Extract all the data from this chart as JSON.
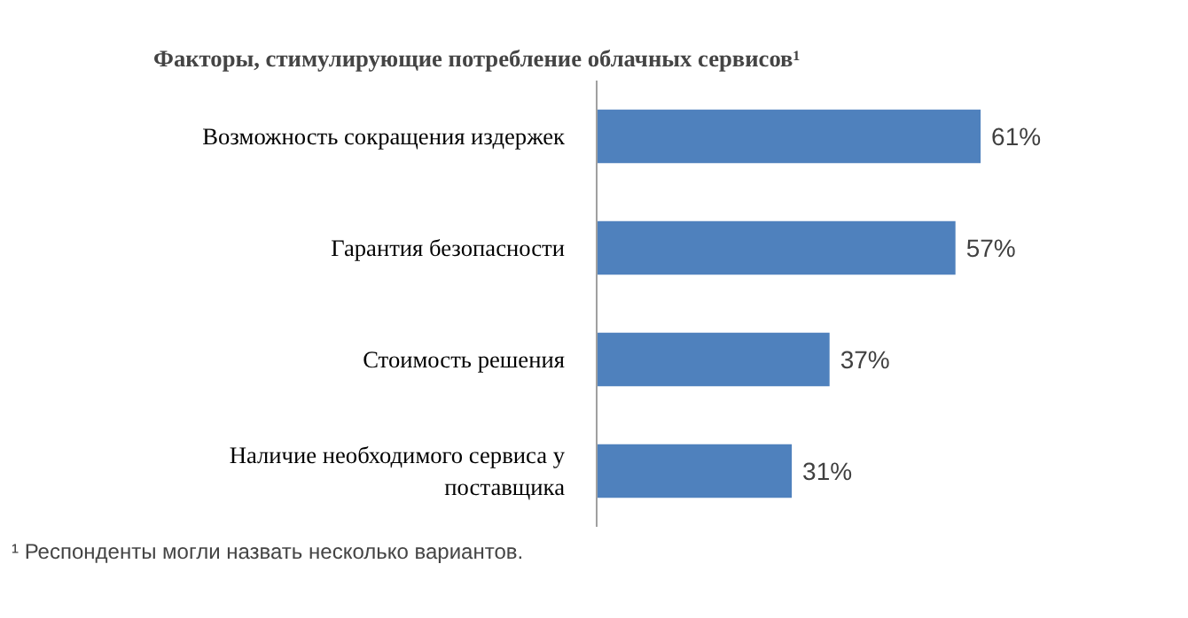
{
  "chart_data": {
    "type": "bar",
    "orientation": "horizontal",
    "title": "Факторы, стимулирующие потребление облачных сервисов¹",
    "categories": [
      "Возможность сокращения издержек",
      "Гарантия безопасности",
      "Стоимость решения",
      "Наличие необходимого сервиса у поставщика"
    ],
    "values": [
      61,
      57,
      37,
      31
    ],
    "value_labels": [
      "61%",
      "57%",
      "37%",
      "31%"
    ],
    "color": "#4f81bd",
    "annotations": [
      "¹ Респонденты могли назвать несколько вариантов."
    ]
  }
}
